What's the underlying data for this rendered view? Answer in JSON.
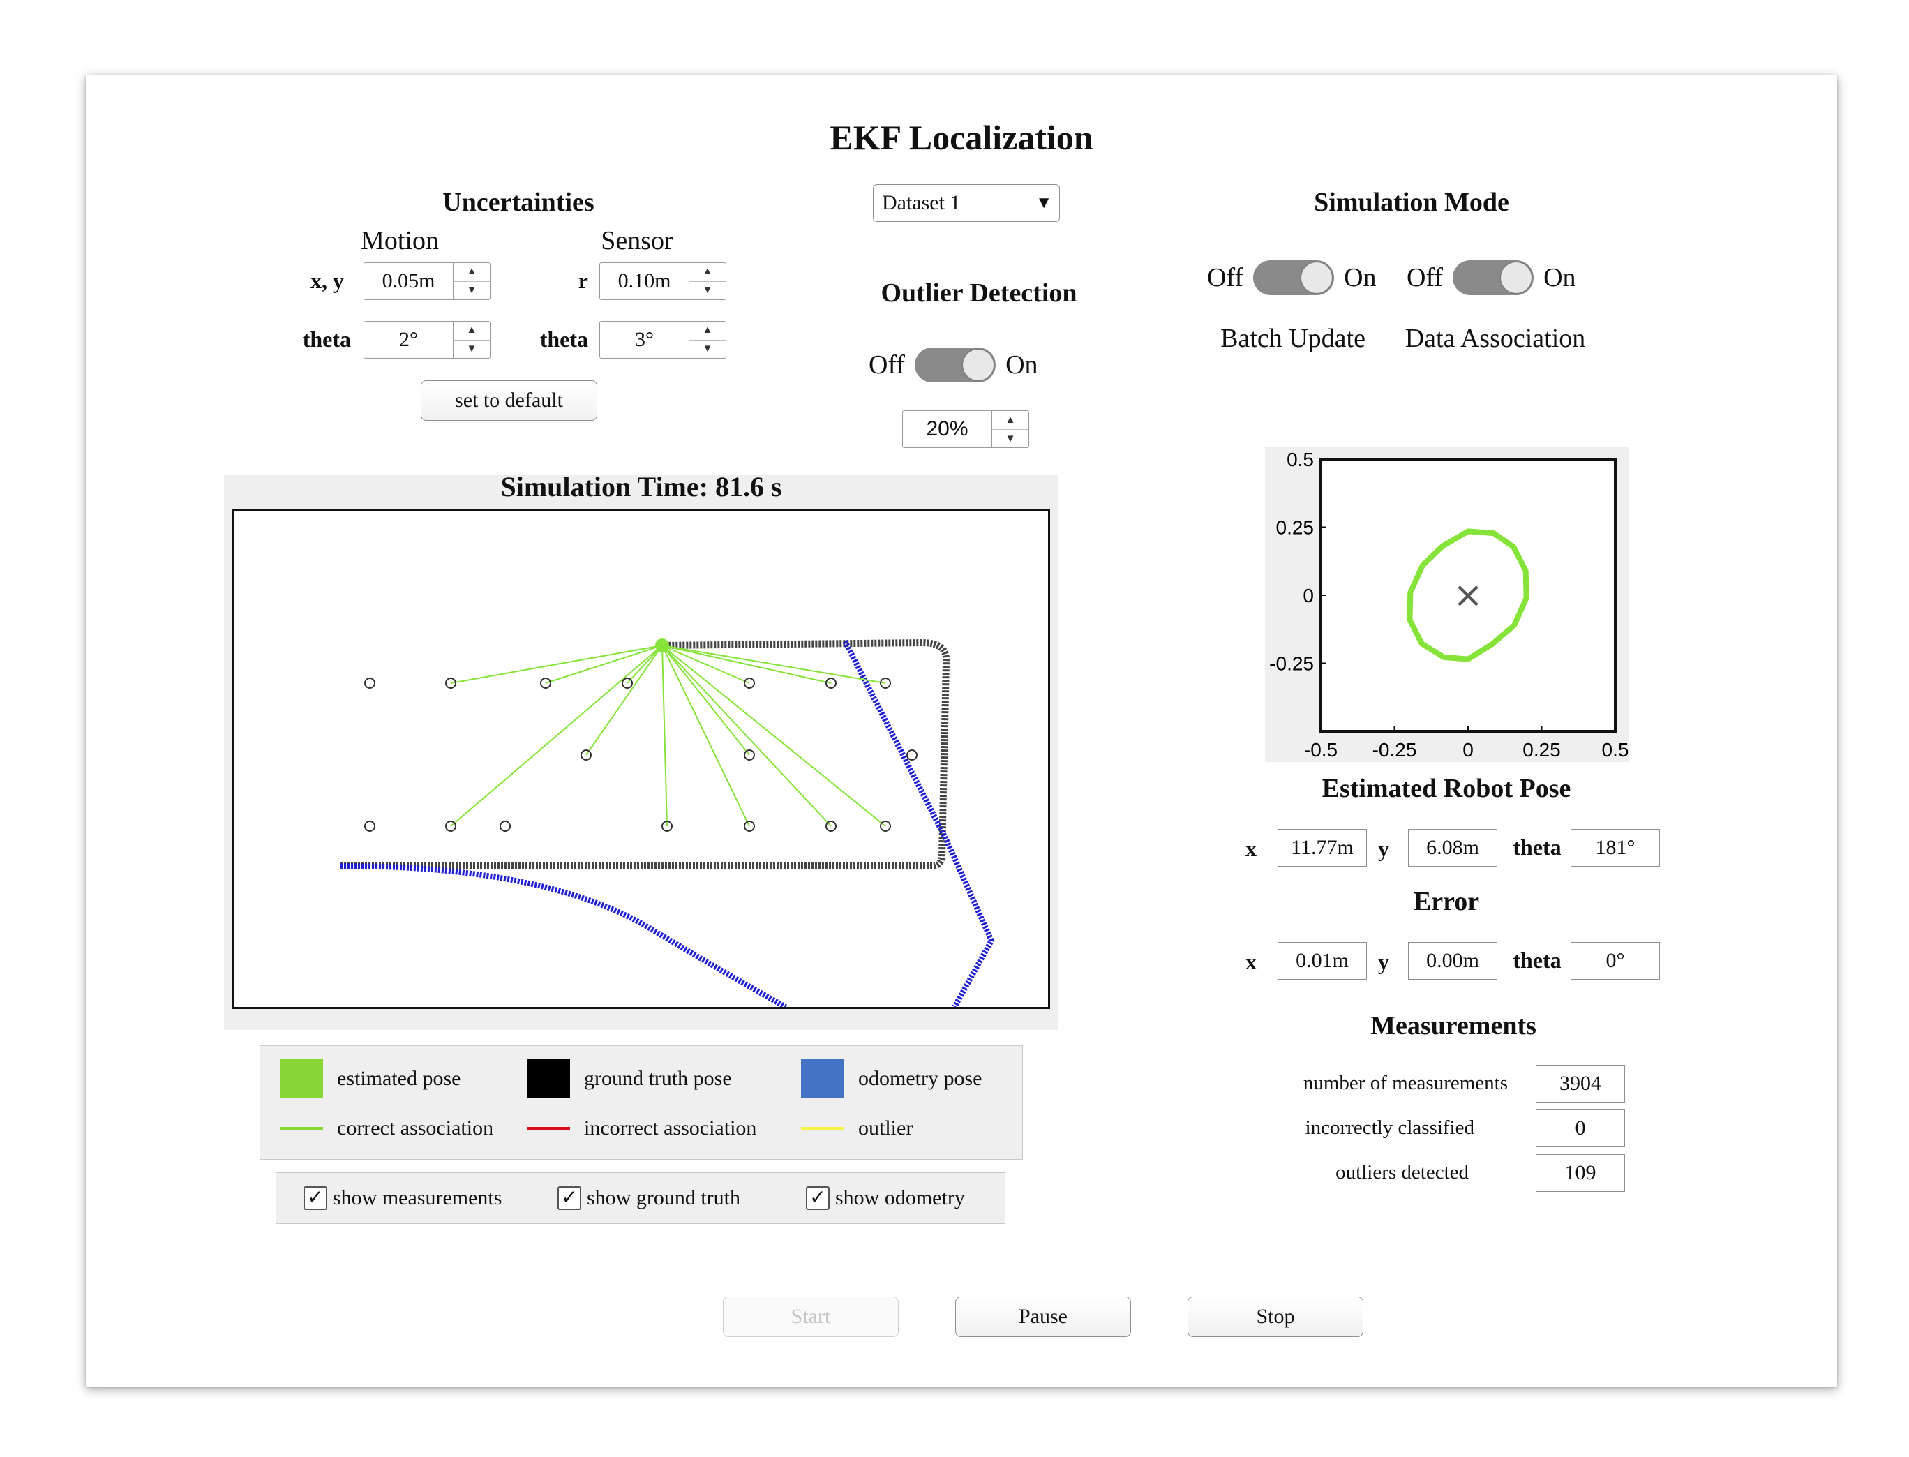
{
  "window": {
    "title": "EKF Localization"
  },
  "dataset": {
    "selected": "Dataset 1",
    "arrow": "▼"
  },
  "uncertainties": {
    "heading": "Uncertainties",
    "motion_label": "Motion",
    "sensor_label": "Sensor",
    "motion_xy_label": "x, y",
    "motion_xy_value": "0.05m",
    "motion_theta_label": "theta",
    "motion_theta_value": "2°",
    "sensor_r_label": "r",
    "sensor_r_value": "0.10m",
    "sensor_theta_label": "theta",
    "sensor_theta_value": "3°",
    "default_button": "set to default"
  },
  "outlier": {
    "heading": "Outlier Detection",
    "off": "Off",
    "on": "On",
    "percent": "20%"
  },
  "simulation_mode": {
    "heading": "Simulation Mode",
    "batch_off": "Off",
    "batch_on": "On",
    "batch_label": "Batch Update",
    "assoc_off": "Off",
    "assoc_on": "On",
    "assoc_label": "Data Association"
  },
  "main_plot": {
    "title": "Simulation Time: 81.6 s",
    "colors": {
      "estimated": "#7ed321",
      "ground_truth": "#111111",
      "odometry": "#1f1fd6",
      "correct": "#7ed321"
    }
  },
  "legend": {
    "estimated_pose": "estimated pose",
    "ground_truth_pose": "ground truth pose",
    "odometry_pose": "odometry pose",
    "correct_association": "correct association",
    "incorrect_association": "incorrect association",
    "outlier": "outlier",
    "colors": {
      "estimated": "#88d636",
      "ground_truth": "#000000",
      "odometry": "#4472c4",
      "correct": "#88d636",
      "incorrect": "#d9101a",
      "outlier": "#f7f247"
    }
  },
  "checkboxes": {
    "show_measurements": "show measurements",
    "show_ground_truth": "show ground truth",
    "show_odometry": "show odometry",
    "check": "✓"
  },
  "chart_data": {
    "type": "scatter",
    "title": "",
    "xlim": [
      -0.5,
      0.5
    ],
    "ylim": [
      -0.5,
      0.5
    ],
    "xticks": [
      "-0.5",
      "-0.25",
      "0",
      "0.25",
      "0.5"
    ],
    "yticks": [
      "0.5",
      "0.25",
      "0",
      "-0.25"
    ],
    "center_marker": {
      "x": 0,
      "y": 0,
      "symbol": "×"
    },
    "ellipse": {
      "name": "",
      "color": "#86e33a",
      "x": [
        0.0,
        0.087,
        0.154,
        0.196,
        0.198,
        0.157,
        0.082,
        0.0,
        -0.082,
        -0.157,
        -0.198,
        -0.196,
        -0.154,
        -0.087,
        0.0
      ],
      "y": [
        0.235,
        0.228,
        0.178,
        0.09,
        -0.01,
        -0.11,
        -0.18,
        -0.235,
        -0.228,
        -0.178,
        -0.09,
        0.01,
        0.11,
        0.18,
        0.235
      ]
    }
  },
  "pose": {
    "heading": "Estimated Robot Pose",
    "x_label": "x",
    "x_value": "11.77m",
    "y_label": "y",
    "y_value": "6.08m",
    "theta_label": "theta",
    "theta_value": "181°"
  },
  "error": {
    "heading": "Error",
    "x_label": "x",
    "x_value": "0.01m",
    "y_label": "y",
    "y_value": "0.00m",
    "theta_label": "theta",
    "theta_value": "0°"
  },
  "measurements": {
    "heading": "Measurements",
    "count_label": "number of measurements",
    "count_value": "3904",
    "incorrect_label": "incorrectly classified",
    "incorrect_value": "0",
    "outliers_label": "outliers detected",
    "outliers_value": "109"
  },
  "controls": {
    "start": "Start",
    "pause": "Pause",
    "stop": "Stop"
  }
}
